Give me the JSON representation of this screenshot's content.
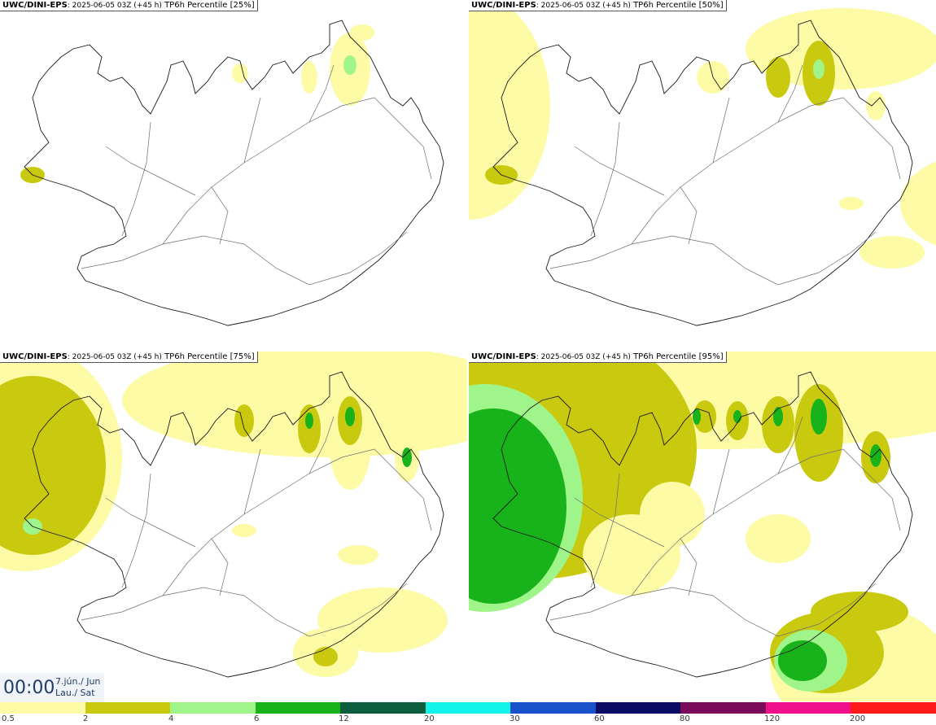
{
  "panels": [
    {
      "source": "UWC/DINI-EPS",
      "run": ": 2025-06-05 03Z (+45 h)",
      "param": " TP6h Percentile [25%]"
    },
    {
      "source": "UWC/DINI-EPS",
      "run": ": 2025-06-05 03Z (+45 h)",
      "param": " TP6h Percentile [50%]"
    },
    {
      "source": "UWC/DINI-EPS",
      "run": ": 2025-06-05 03Z (+45 h)",
      "param": " TP6h Percentile [75%]"
    },
    {
      "source": "UWC/DINI-EPS",
      "run": ": 2025-06-05 03Z (+45 h)",
      "param": " TP6h Percentile [95%]"
    }
  ],
  "valid_time": {
    "clock": "00:00",
    "date_line1": "7.jún./ Jun",
    "date_line2": "Lau./ Sat"
  },
  "legend": {
    "colors": [
      "#fdfba6",
      "#c9c90f",
      "#a0f58a",
      "#18b31a",
      "#0d5e3f",
      "#14f2ec",
      "#1750c8",
      "#0b0b64",
      "#7a0a5a",
      "#f0108c",
      "#ff1a1a"
    ],
    "labels": [
      "0.5",
      "2",
      "4",
      "6",
      "12",
      "20",
      "30",
      "60",
      "80",
      "120",
      "200"
    ]
  },
  "field_colors": {
    "land": "#ffffff",
    "level1": "#fdfba6",
    "level2": "#c9c90f",
    "level3": "#a0f58a",
    "level4": "#18b31a",
    "level5": "#0d5e3f",
    "coast": "#1a1a1a",
    "roads": "#6e6e6e"
  }
}
